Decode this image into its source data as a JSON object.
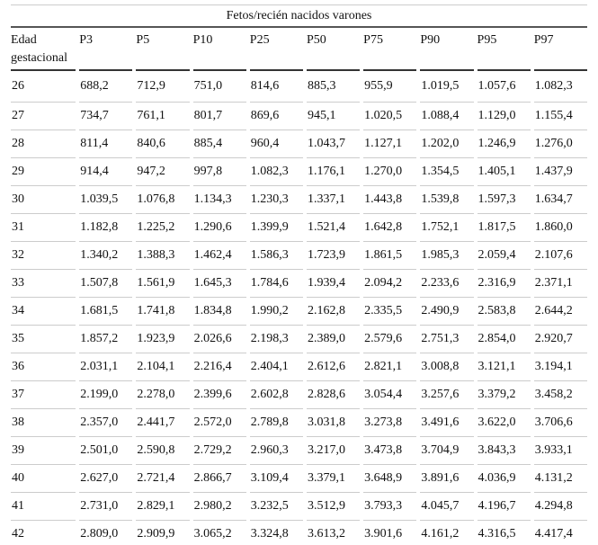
{
  "table": {
    "title": "Fetos/recién nacidos varones",
    "header": [
      "Edad gestacional",
      "P3",
      "P5",
      "P10",
      "P25",
      "P50",
      "P75",
      "P90",
      "P95",
      "P97"
    ],
    "rows": [
      [
        "26",
        "688,2",
        "712,9",
        "751,0",
        "814,6",
        "885,3",
        "955,9",
        "1.019,5",
        "1.057,6",
        "1.082,3"
      ],
      [
        "27",
        "734,7",
        "761,1",
        "801,7",
        "869,6",
        "945,1",
        "1.020,5",
        "1.088,4",
        "1.129,0",
        "1.155,4"
      ],
      [
        "28",
        "811,4",
        "840,6",
        "885,4",
        "960,4",
        "1.043,7",
        "1.127,1",
        "1.202,0",
        "1.246,9",
        "1.276,0"
      ],
      [
        "29",
        "914,4",
        "947,2",
        "997,8",
        "1.082,3",
        "1.176,1",
        "1.270,0",
        "1.354,5",
        "1.405,1",
        "1.437,9"
      ],
      [
        "30",
        "1.039,5",
        "1.076,8",
        "1.134,3",
        "1.230,3",
        "1.337,1",
        "1.443,8",
        "1.539,8",
        "1.597,3",
        "1.634,7"
      ],
      [
        "31",
        "1.182,8",
        "1.225,2",
        "1.290,6",
        "1.399,9",
        "1.521,4",
        "1.642,8",
        "1.752,1",
        "1.817,5",
        "1.860,0"
      ],
      [
        "32",
        "1.340,2",
        "1.388,3",
        "1.462,4",
        "1.586,3",
        "1.723,9",
        "1.861,5",
        "1.985,3",
        "2.059,4",
        "2.107,6"
      ],
      [
        "33",
        "1.507,8",
        "1.561,9",
        "1.645,3",
        "1.784,6",
        "1.939,4",
        "2.094,2",
        "2.233,6",
        "2.316,9",
        "2.371,1"
      ],
      [
        "34",
        "1.681,5",
        "1.741,8",
        "1.834,8",
        "1.990,2",
        "2.162,8",
        "2.335,5",
        "2.490,9",
        "2.583,8",
        "2.644,2"
      ],
      [
        "35",
        "1.857,2",
        "1.923,9",
        "2.026,6",
        "2.198,3",
        "2.389,0",
        "2.579,6",
        "2.751,3",
        "2.854,0",
        "2.920,7"
      ],
      [
        "36",
        "2.031,1",
        "2.104,1",
        "2.216,4",
        "2.404,1",
        "2.612,6",
        "2.821,1",
        "3.008,8",
        "3.121,1",
        "3.194,1"
      ],
      [
        "37",
        "2.199,0",
        "2.278,0",
        "2.399,6",
        "2.602,8",
        "2.828,6",
        "3.054,4",
        "3.257,6",
        "3.379,2",
        "3.458,2"
      ],
      [
        "38",
        "2.357,0",
        "2.441,7",
        "2.572,0",
        "2.789,8",
        "3.031,8",
        "3.273,8",
        "3.491,6",
        "3.622,0",
        "3.706,6"
      ],
      [
        "39",
        "2.501,0",
        "2.590,8",
        "2.729,2",
        "2.960,3",
        "3.217,0",
        "3.473,8",
        "3.704,9",
        "3.843,3",
        "3.933,1"
      ],
      [
        "40",
        "2.627,0",
        "2.721,4",
        "2.866,7",
        "3.109,4",
        "3.379,1",
        "3.648,9",
        "3.891,6",
        "4.036,9",
        "4.131,2"
      ],
      [
        "41",
        "2.731,0",
        "2.829,1",
        "2.980,2",
        "3.232,5",
        "3.512,9",
        "3.793,3",
        "4.045,7",
        "4.196,7",
        "4.294,8"
      ],
      [
        "42",
        "2.809,0",
        "2.909,9",
        "3.065,2",
        "3.324,8",
        "3.613,2",
        "3.901,6",
        "4.161,2",
        "4.316,5",
        "4.417,4"
      ]
    ]
  }
}
